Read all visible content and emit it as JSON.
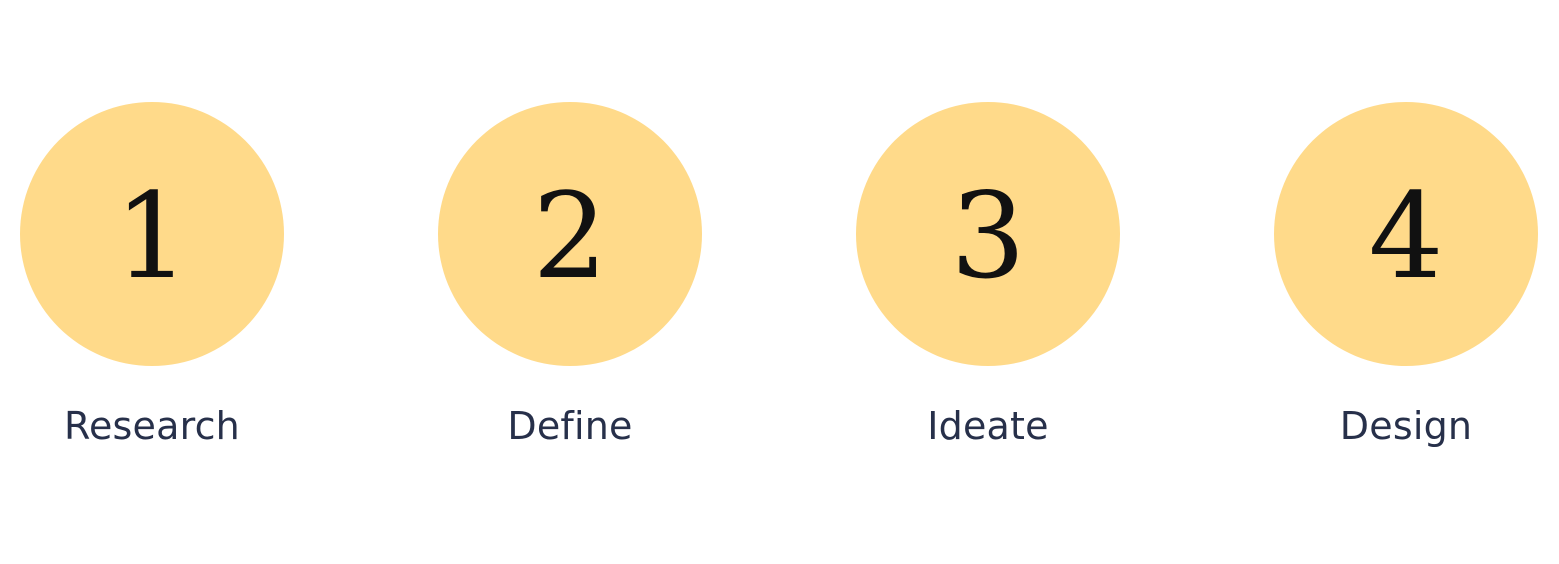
{
  "colors": {
    "circle_fill": "#FFDA8A",
    "numeral": "#111111",
    "label": "#27304A",
    "background": "#FFFFFF"
  },
  "steps": [
    {
      "number": "1",
      "label": "Research"
    },
    {
      "number": "2",
      "label": "Define"
    },
    {
      "number": "3",
      "label": "Ideate"
    },
    {
      "number": "4",
      "label": "Design"
    }
  ]
}
